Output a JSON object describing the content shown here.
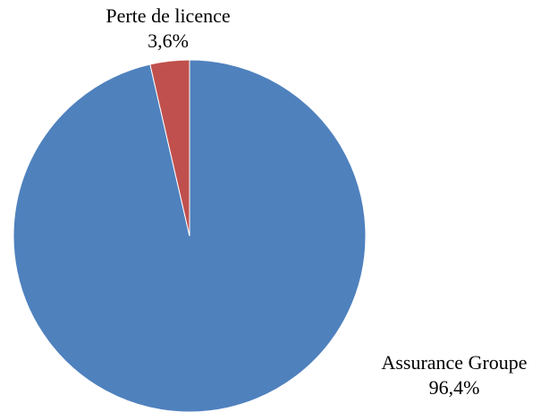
{
  "chart_data": {
    "type": "pie",
    "categories": [
      "Assurance Groupe",
      "Perte de licence"
    ],
    "values": [
      96.4,
      3.6
    ],
    "value_labels": [
      "96,4%",
      "3,6%"
    ],
    "colors": [
      "#4f81bd",
      "#c0504d"
    ]
  }
}
